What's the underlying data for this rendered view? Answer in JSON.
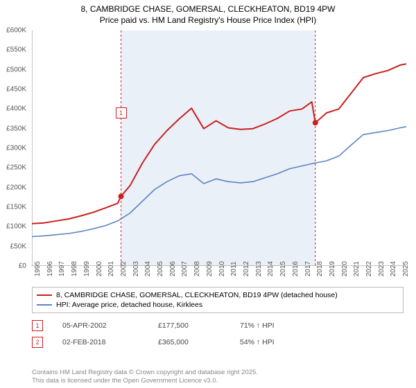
{
  "title": {
    "line1": "8, CAMBRIDGE CHASE, GOMERSAL, CLECKHEATON, BD19 4PW",
    "line2": "Price paid vs. HM Land Registry's House Price Index (HPI)"
  },
  "chart": {
    "type": "line",
    "background_color": "#ffffff",
    "shaded_band_color": "#eaf0f8",
    "grid_on": false,
    "axis_color": "#888888",
    "title_fontsize": 12,
    "label_fontsize": 10,
    "x": {
      "min": 1995,
      "max": 2025.5,
      "ticks": [
        1995,
        1996,
        1997,
        1998,
        1999,
        2000,
        2001,
        2002,
        2003,
        2004,
        2005,
        2006,
        2007,
        2008,
        2009,
        2010,
        2011,
        2012,
        2013,
        2014,
        2015,
        2016,
        2017,
        2018,
        2019,
        2020,
        2021,
        2022,
        2023,
        2024,
        2025
      ]
    },
    "y": {
      "min": 0,
      "max": 600000,
      "tick_step": 50000,
      "prefix": "£",
      "suffix": "K",
      "divide": 1000
    },
    "shaded_band": {
      "x_start": 2002.26,
      "x_end": 2018.09
    },
    "series": [
      {
        "id": "property",
        "label": "8, CAMBRIDGE CHASE, GOMERSAL, CLECKHEATON, BD19 4PW (detached house)",
        "color": "#cc1e1e",
        "line_width": 2,
        "data": [
          [
            1995,
            108000
          ],
          [
            1996,
            110000
          ],
          [
            1997,
            115000
          ],
          [
            1998,
            120000
          ],
          [
            1999,
            128000
          ],
          [
            2000,
            137000
          ],
          [
            2001,
            148000
          ],
          [
            2002,
            160000
          ],
          [
            2002.26,
            177500
          ],
          [
            2003,
            205000
          ],
          [
            2004,
            262000
          ],
          [
            2005,
            310000
          ],
          [
            2006,
            345000
          ],
          [
            2007,
            375000
          ],
          [
            2008,
            402000
          ],
          [
            2009,
            350000
          ],
          [
            2010,
            370000
          ],
          [
            2011,
            352000
          ],
          [
            2012,
            348000
          ],
          [
            2013,
            350000
          ],
          [
            2014,
            362000
          ],
          [
            2015,
            376000
          ],
          [
            2016,
            395000
          ],
          [
            2017,
            400000
          ],
          [
            2017.8,
            418000
          ],
          [
            2018.09,
            365000
          ],
          [
            2019,
            390000
          ],
          [
            2020,
            400000
          ],
          [
            2021,
            440000
          ],
          [
            2022,
            480000
          ],
          [
            2023,
            490000
          ],
          [
            2024,
            498000
          ],
          [
            2025,
            512000
          ],
          [
            2025.5,
            515000
          ]
        ]
      },
      {
        "id": "hpi",
        "label": "HPI: Average price, detached house, Kirklees",
        "color": "#5b83c4",
        "line_width": 1.6,
        "data": [
          [
            1995,
            75000
          ],
          [
            1996,
            77000
          ],
          [
            1997,
            80000
          ],
          [
            1998,
            83000
          ],
          [
            1999,
            88000
          ],
          [
            2000,
            95000
          ],
          [
            2001,
            103000
          ],
          [
            2002,
            115000
          ],
          [
            2003,
            135000
          ],
          [
            2004,
            165000
          ],
          [
            2005,
            195000
          ],
          [
            2006,
            215000
          ],
          [
            2007,
            230000
          ],
          [
            2008,
            235000
          ],
          [
            2009,
            210000
          ],
          [
            2010,
            222000
          ],
          [
            2011,
            215000
          ],
          [
            2012,
            212000
          ],
          [
            2013,
            215000
          ],
          [
            2014,
            225000
          ],
          [
            2015,
            235000
          ],
          [
            2016,
            248000
          ],
          [
            2017,
            255000
          ],
          [
            2018,
            262000
          ],
          [
            2019,
            268000
          ],
          [
            2020,
            280000
          ],
          [
            2021,
            308000
          ],
          [
            2022,
            335000
          ],
          [
            2023,
            340000
          ],
          [
            2024,
            345000
          ],
          [
            2025,
            352000
          ],
          [
            2025.5,
            355000
          ]
        ]
      }
    ],
    "transaction_markers": [
      {
        "n": "1",
        "x": 2002.26,
        "y": 177500,
        "color": "#cc1e1e",
        "dash_color": "#cc1e1e",
        "date": "05-APR-2002",
        "price": "£177,500",
        "pct_vs_hpi": "71% ↑ HPI",
        "label_y_offset": -120
      },
      {
        "n": "2",
        "x": 2018.09,
        "y": 365000,
        "color": "#cc1e1e",
        "dash_color": "#cc1e1e",
        "date": "02-FEB-2018",
        "price": "£365,000",
        "pct_vs_hpi": "54% ↑ HPI",
        "label_y_offset": -260
      }
    ]
  },
  "footer": {
    "line1": "Contains HM Land Registry data © Crown copyright and database right 2025.",
    "line2": "This data is licensed under the Open Government Licence v3.0."
  }
}
